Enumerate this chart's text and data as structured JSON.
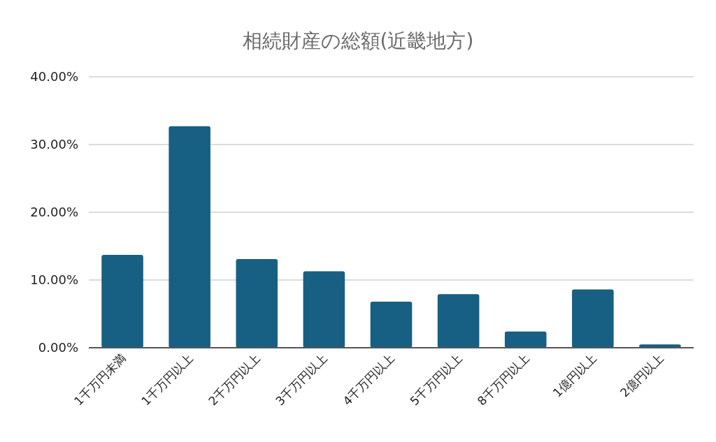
{
  "chart_data": {
    "type": "bar",
    "title": "相続財産の総額(近畿地方)",
    "categories": [
      "1千万円未満",
      "1千万円以上",
      "2千万円以上",
      "3千万円以上",
      "4千万円以上",
      "5千万円以上",
      "8千万円以上",
      "1億円以上",
      "2億円以上"
    ],
    "values": [
      13.7,
      32.7,
      13.1,
      11.3,
      6.8,
      7.9,
      2.4,
      8.6,
      0.5
    ],
    "color": "#176083",
    "ylim": [
      0,
      40
    ],
    "yticks": [
      {
        "value": 0,
        "label": "0.00%"
      },
      {
        "value": 10,
        "label": "10.00%"
      },
      {
        "value": 20,
        "label": "20.00%"
      },
      {
        "value": 30,
        "label": "30.00%"
      },
      {
        "value": 40,
        "label": "40.00%"
      }
    ],
    "grid": "y"
  }
}
